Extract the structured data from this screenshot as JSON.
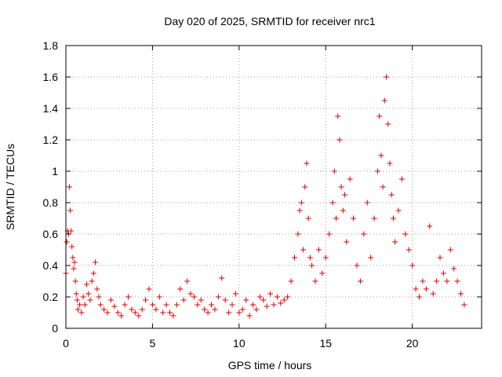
{
  "chart_data": {
    "type": "scatter",
    "title": "Day 020 of 2025, SRMTID for receiver nrc1",
    "xlabel": "GPS time / hours",
    "ylabel": "SRMTID / TECUs",
    "xlim": [
      0,
      24
    ],
    "ylim": [
      0,
      1.8
    ],
    "xticks": [
      0,
      5,
      10,
      15,
      20
    ],
    "xtick_labels": [
      "0",
      "5",
      "10",
      "15",
      "20"
    ],
    "yticks": [
      0,
      0.2,
      0.4,
      0.6,
      0.8,
      1.0,
      1.2,
      1.4,
      1.6,
      1.8
    ],
    "ytick_labels": [
      "0",
      "0.2",
      "0.4",
      "0.6",
      "0.8",
      "1",
      "1.2",
      "1.4",
      "1.6",
      "1.8"
    ],
    "grid": true,
    "marker": "+",
    "color": "#e00000",
    "series": [
      {
        "name": "nrc1",
        "x": [
          0.0,
          0.05,
          0.1,
          0.15,
          0.2,
          0.25,
          0.3,
          0.35,
          0.4,
          0.45,
          0.5,
          0.55,
          0.6,
          0.65,
          0.7,
          0.8,
          0.9,
          1.0,
          1.1,
          1.2,
          1.3,
          1.4,
          1.5,
          1.6,
          1.7,
          1.8,
          1.9,
          2.0,
          2.2,
          2.4,
          2.6,
          2.8,
          3.0,
          3.2,
          3.4,
          3.6,
          3.8,
          4.0,
          4.2,
          4.4,
          4.6,
          4.8,
          5.0,
          5.2,
          5.4,
          5.6,
          5.8,
          6.0,
          6.2,
          6.4,
          6.6,
          6.8,
          7.0,
          7.2,
          7.4,
          7.6,
          7.8,
          8.0,
          8.2,
          8.4,
          8.6,
          8.8,
          9.0,
          9.2,
          9.4,
          9.6,
          9.8,
          10.0,
          10.2,
          10.4,
          10.6,
          10.8,
          11.0,
          11.2,
          11.4,
          11.6,
          11.8,
          12.0,
          12.2,
          12.4,
          12.6,
          12.8,
          13.0,
          13.2,
          13.4,
          13.5,
          13.6,
          13.7,
          13.8,
          13.9,
          14.0,
          14.1,
          14.2,
          14.4,
          14.6,
          14.8,
          15.0,
          15.2,
          15.4,
          15.5,
          15.6,
          15.7,
          15.8,
          15.9,
          16.0,
          16.1,
          16.2,
          16.4,
          16.6,
          16.8,
          17.0,
          17.2,
          17.4,
          17.6,
          17.8,
          18.0,
          18.1,
          18.2,
          18.3,
          18.4,
          18.5,
          18.6,
          18.7,
          18.8,
          18.9,
          19.0,
          19.2,
          19.4,
          19.6,
          19.8,
          20.0,
          20.2,
          20.4,
          20.6,
          20.8,
          21.0,
          21.2,
          21.4,
          21.6,
          21.8,
          22.0,
          22.2,
          22.4,
          22.6,
          22.8,
          23.0
        ],
        "y": [
          0.35,
          0.55,
          0.62,
          0.6,
          0.9,
          0.75,
          0.62,
          0.52,
          0.45,
          0.38,
          0.42,
          0.3,
          0.22,
          0.18,
          0.12,
          0.15,
          0.1,
          0.2,
          0.15,
          0.28,
          0.22,
          0.18,
          0.3,
          0.35,
          0.42,
          0.25,
          0.2,
          0.15,
          0.12,
          0.1,
          0.18,
          0.14,
          0.1,
          0.08,
          0.15,
          0.2,
          0.12,
          0.1,
          0.08,
          0.12,
          0.18,
          0.25,
          0.15,
          0.12,
          0.2,
          0.1,
          0.15,
          0.1,
          0.08,
          0.15,
          0.25,
          0.18,
          0.3,
          0.22,
          0.2,
          0.15,
          0.18,
          0.12,
          0.1,
          0.15,
          0.12,
          0.2,
          0.32,
          0.18,
          0.1,
          0.15,
          0.22,
          0.1,
          0.12,
          0.18,
          0.08,
          0.15,
          0.12,
          0.2,
          0.18,
          0.14,
          0.22,
          0.15,
          0.2,
          0.16,
          0.18,
          0.2,
          0.3,
          0.45,
          0.6,
          0.75,
          0.8,
          0.5,
          0.9,
          1.05,
          0.7,
          0.45,
          0.4,
          0.3,
          0.5,
          0.35,
          0.45,
          0.6,
          0.8,
          1.0,
          0.7,
          1.35,
          1.2,
          0.9,
          0.75,
          0.85,
          0.55,
          0.95,
          0.7,
          0.4,
          0.3,
          0.6,
          0.8,
          0.45,
          0.7,
          1.0,
          1.35,
          1.1,
          0.9,
          1.45,
          1.6,
          1.3,
          1.05,
          0.85,
          0.7,
          0.55,
          0.75,
          0.95,
          0.6,
          0.5,
          0.4,
          0.25,
          0.2,
          0.3,
          0.25,
          0.65,
          0.22,
          0.3,
          0.45,
          0.35,
          0.3,
          0.5,
          0.38,
          0.3,
          0.22,
          0.15
        ]
      }
    ]
  }
}
